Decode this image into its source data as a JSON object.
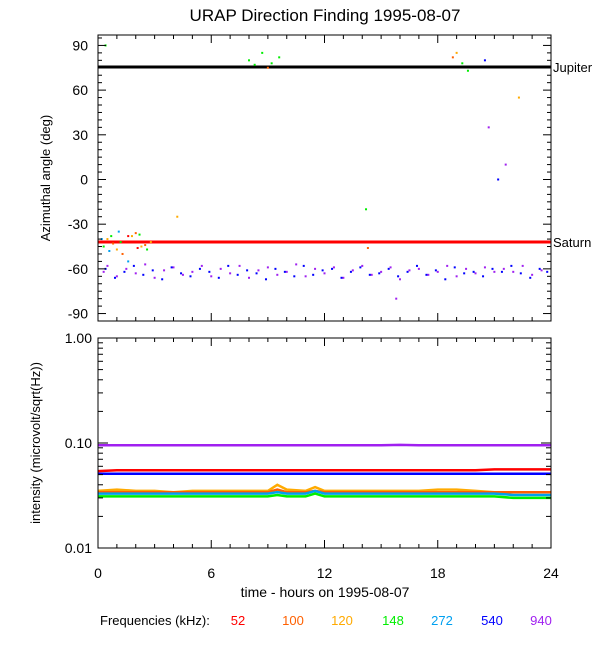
{
  "chart_data": [
    {
      "type": "scatter",
      "title": "URAP Direction Finding  1995-08-07",
      "ylabel": "Azimuthal angle (deg)",
      "xlim": [
        0,
        24
      ],
      "ylim": [
        -95,
        97
      ],
      "yticks": [
        90,
        60,
        30,
        0,
        -30,
        -60,
        -90
      ],
      "reference_lines": [
        {
          "name": "Jupiter",
          "y": 75.5,
          "color": "#000000"
        },
        {
          "name": "Saturn",
          "y": -42,
          "color": "#ff0000"
        }
      ],
      "series": [
        {
          "name": "940",
          "color": "#a020f0",
          "x": [
            0.3,
            0.5,
            1.0,
            1.5,
            2.0,
            2.5,
            3.0,
            3.5,
            4.0,
            4.5,
            5.0,
            5.5,
            6.0,
            6.5,
            7.0,
            7.5,
            8.0,
            8.5,
            9.0,
            9.5,
            10.0,
            10.5,
            11.0,
            11.5,
            12.0,
            12.5,
            13.0,
            13.5,
            14.0,
            14.5,
            15.0,
            15.5,
            16.0,
            16.5,
            17.0,
            17.5,
            18.0,
            18.5,
            19.0,
            19.5,
            20.0,
            20.5,
            21.0,
            21.5,
            22.0,
            22.5,
            23.0,
            23.5,
            20.7,
            21.6,
            15.8
          ],
          "y": [
            -62,
            -58,
            -65,
            -60,
            -63,
            -57,
            -66,
            -61,
            -59,
            -64,
            -62,
            -58,
            -65,
            -60,
            -63,
            -58,
            -66,
            -61,
            -59,
            -64,
            -62,
            -57,
            -65,
            -60,
            -63,
            -59,
            -66,
            -61,
            -58,
            -64,
            -62,
            -59,
            -67,
            -61,
            -60,
            -64,
            -62,
            -58,
            -65,
            -60,
            -63,
            -59,
            -62,
            -60,
            -62,
            -58,
            -64,
            -61,
            35,
            10,
            -80
          ]
        },
        {
          "name": "540",
          "color": "#0000ff",
          "x": [
            0.4,
            0.9,
            1.4,
            1.9,
            2.4,
            2.9,
            3.4,
            3.9,
            4.4,
            4.9,
            5.4,
            5.9,
            6.4,
            6.9,
            7.4,
            7.9,
            8.4,
            8.9,
            9.4,
            9.9,
            10.4,
            10.9,
            11.4,
            11.9,
            12.4,
            12.9,
            13.4,
            13.9,
            14.4,
            14.9,
            15.4,
            15.9,
            16.4,
            16.9,
            17.4,
            17.9,
            18.4,
            18.9,
            19.4,
            19.9,
            20.4,
            20.9,
            21.4,
            21.9,
            22.4,
            22.9,
            23.4,
            23.8,
            20.5,
            21.2
          ],
          "y": [
            -60,
            -66,
            -62,
            -58,
            -64,
            -61,
            -67,
            -59,
            -63,
            -65,
            -60,
            -62,
            -66,
            -58,
            -64,
            -61,
            -63,
            -67,
            -60,
            -62,
            -65,
            -58,
            -64,
            -61,
            -60,
            -66,
            -62,
            -59,
            -64,
            -63,
            -60,
            -65,
            -62,
            -58,
            -64,
            -61,
            -67,
            -59,
            -63,
            -62,
            -65,
            -60,
            -62,
            -58,
            -63,
            -66,
            -60,
            -62,
            80,
            0
          ]
        },
        {
          "name": "272",
          "color": "#00a0f0",
          "x": [
            0.2,
            0.6,
            1.1,
            1.6
          ],
          "y": [
            -40,
            -48,
            -35,
            -55
          ]
        },
        {
          "name": "148",
          "color": "#00ee00",
          "x": [
            0.3,
            0.7,
            1.2,
            2.2,
            2.6,
            8.0,
            8.3,
            8.7,
            9.2,
            9.6,
            14.2,
            19.3,
            19.6,
            0.4
          ],
          "y": [
            -45,
            -38,
            -42,
            -37,
            -47,
            80,
            77,
            85,
            78,
            82,
            -20,
            78,
            73,
            90
          ]
        },
        {
          "name": "120",
          "color": "#ffaa00",
          "x": [
            0.5,
            1.0,
            1.8,
            2.3,
            2.8,
            4.2,
            19.0,
            22.3
          ],
          "y": [
            -40,
            -47,
            -38,
            -45,
            -42,
            -25,
            85,
            55
          ]
        },
        {
          "name": "100",
          "color": "#ff6000",
          "x": [
            0.8,
            1.3,
            2.0,
            2.5,
            9.0,
            14.3,
            18.8
          ],
          "y": [
            -43,
            -50,
            -36,
            -44,
            75,
            -46,
            82
          ]
        },
        {
          "name": "52",
          "color": "#ff0000",
          "x": [
            1.0,
            1.6,
            2.1
          ],
          "y": [
            -42,
            -38,
            -46
          ]
        }
      ]
    },
    {
      "type": "line",
      "ylabel": "intensity (microvolt/sqrt(Hz))",
      "xlabel": "time - hours on 1995-08-07",
      "xlim": [
        0,
        24
      ],
      "xticks": [
        0,
        6,
        12,
        18,
        24
      ],
      "yscale": "log",
      "ylim": [
        0.01,
        1.0
      ],
      "yticks": [
        1.0,
        0.1,
        0.01
      ],
      "ytick_labels": [
        "1.00",
        "0.10",
        "0.01"
      ],
      "x": [
        0,
        1,
        2,
        3,
        4,
        5,
        6,
        7,
        8,
        9,
        9.5,
        10,
        11,
        11.5,
        12,
        13,
        14,
        15,
        16,
        17,
        18,
        19,
        20,
        21,
        22,
        23,
        24
      ],
      "series": [
        {
          "name": "940",
          "color": "#a020f0",
          "values": [
            0.095,
            0.095,
            0.095,
            0.095,
            0.095,
            0.095,
            0.095,
            0.095,
            0.095,
            0.095,
            0.095,
            0.095,
            0.095,
            0.095,
            0.095,
            0.095,
            0.095,
            0.095,
            0.096,
            0.095,
            0.095,
            0.095,
            0.095,
            0.095,
            0.095,
            0.095,
            0.095
          ]
        },
        {
          "name": "52",
          "color": "#ff0000",
          "values": [
            0.054,
            0.055,
            0.055,
            0.055,
            0.055,
            0.055,
            0.055,
            0.055,
            0.055,
            0.055,
            0.055,
            0.055,
            0.055,
            0.055,
            0.055,
            0.055,
            0.055,
            0.055,
            0.055,
            0.055,
            0.055,
            0.055,
            0.055,
            0.056,
            0.056,
            0.056,
            0.056
          ]
        },
        {
          "name": "540",
          "color": "#0000ff",
          "values": [
            0.051,
            0.051,
            0.051,
            0.051,
            0.051,
            0.051,
            0.051,
            0.051,
            0.051,
            0.051,
            0.051,
            0.051,
            0.051,
            0.051,
            0.051,
            0.051,
            0.051,
            0.051,
            0.051,
            0.051,
            0.051,
            0.051,
            0.051,
            0.051,
            0.051,
            0.051,
            0.051
          ]
        },
        {
          "name": "120",
          "color": "#ffaa00",
          "values": [
            0.035,
            0.036,
            0.035,
            0.035,
            0.034,
            0.035,
            0.035,
            0.035,
            0.035,
            0.035,
            0.04,
            0.036,
            0.035,
            0.038,
            0.035,
            0.035,
            0.035,
            0.035,
            0.035,
            0.035,
            0.036,
            0.036,
            0.035,
            0.034,
            0.034,
            0.034,
            0.034
          ]
        },
        {
          "name": "100",
          "color": "#ff6000",
          "values": [
            0.034,
            0.034,
            0.034,
            0.034,
            0.034,
            0.034,
            0.034,
            0.034,
            0.034,
            0.034,
            0.036,
            0.034,
            0.034,
            0.035,
            0.034,
            0.034,
            0.034,
            0.034,
            0.034,
            0.034,
            0.034,
            0.034,
            0.034,
            0.034,
            0.034,
            0.034,
            0.034
          ]
        },
        {
          "name": "272",
          "color": "#00a0f0",
          "values": [
            0.033,
            0.033,
            0.033,
            0.033,
            0.033,
            0.033,
            0.033,
            0.033,
            0.033,
            0.033,
            0.034,
            0.033,
            0.033,
            0.035,
            0.033,
            0.033,
            0.033,
            0.033,
            0.033,
            0.033,
            0.033,
            0.033,
            0.033,
            0.033,
            0.032,
            0.032,
            0.032
          ]
        },
        {
          "name": "148",
          "color": "#00ee00",
          "values": [
            0.031,
            0.031,
            0.031,
            0.031,
            0.031,
            0.031,
            0.031,
            0.031,
            0.031,
            0.031,
            0.032,
            0.031,
            0.031,
            0.033,
            0.031,
            0.031,
            0.031,
            0.031,
            0.031,
            0.031,
            0.031,
            0.031,
            0.031,
            0.031,
            0.03,
            0.03,
            0.03
          ]
        }
      ]
    }
  ],
  "legend": {
    "label": "Frequencies (kHz):",
    "items": [
      {
        "name": "52",
        "color": "#ff0000"
      },
      {
        "name": "100",
        "color": "#ff6000"
      },
      {
        "name": "120",
        "color": "#ffaa00"
      },
      {
        "name": "148",
        "color": "#00ee00"
      },
      {
        "name": "272",
        "color": "#00a0f0"
      },
      {
        "name": "540",
        "color": "#0000ff"
      },
      {
        "name": "940",
        "color": "#a020f0"
      }
    ]
  }
}
